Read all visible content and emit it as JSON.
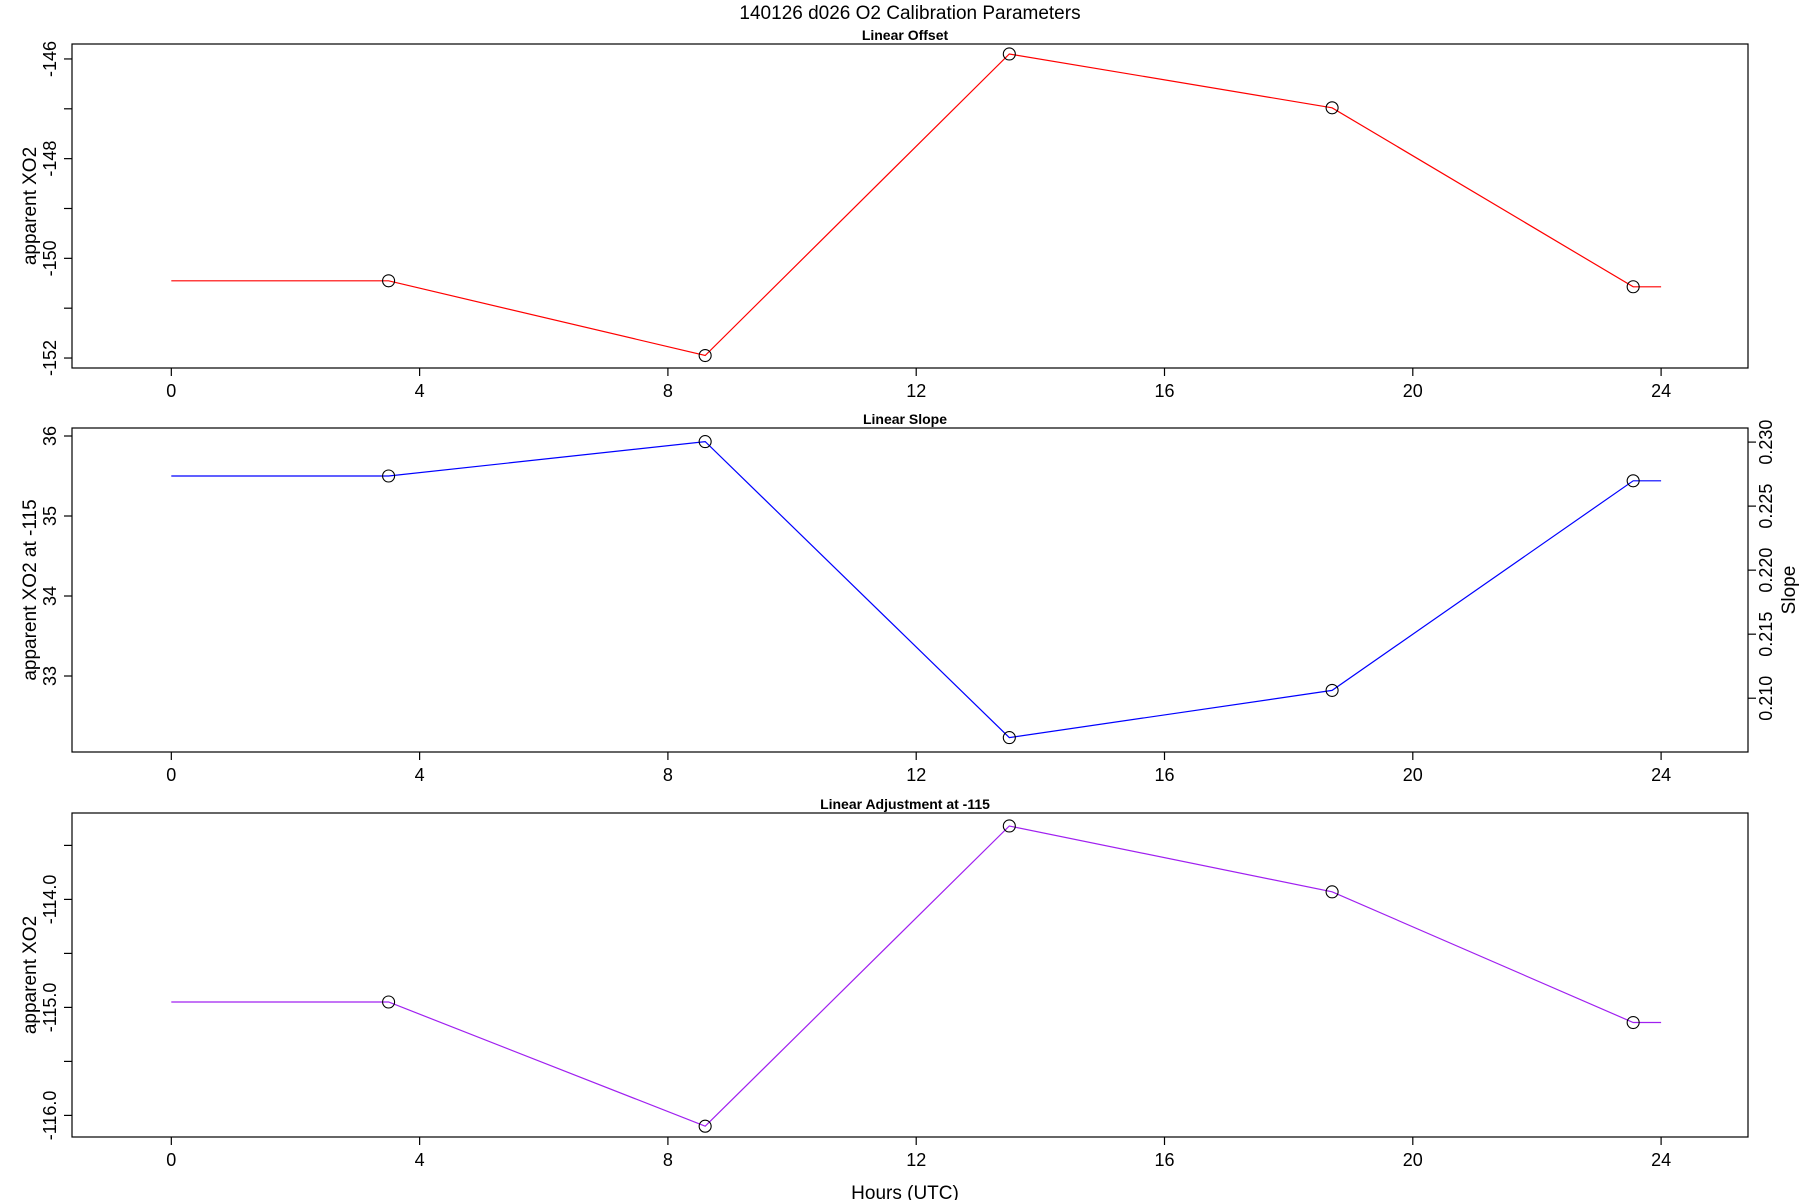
{
  "figure": {
    "title": "140126   d026   O2 Calibration Parameters"
  },
  "chart_data": [
    {
      "type": "line",
      "title": "Linear Offset",
      "xlabel": "",
      "ylabel": "apparent XO2",
      "xlim": [
        -1.6,
        25.4
      ],
      "ylim": [
        -152.2,
        -145.7
      ],
      "x_ticks": [
        "0",
        "4",
        "8",
        "12",
        "16",
        "20",
        "24"
      ],
      "y_ticks": [
        "-146",
        "-148",
        "-150",
        "-152"
      ],
      "y_minor_ticks": [
        -147,
        -149,
        -151
      ],
      "color": "#ff0000",
      "line": {
        "x": [
          0,
          3.5,
          8.6,
          13.5,
          18.7,
          23.55,
          24
        ],
        "y": [
          -150.45,
          -150.45,
          -151.95,
          -145.9,
          -146.98,
          -150.57,
          -150.57
        ]
      },
      "points": {
        "x": [
          3.5,
          8.6,
          13.5,
          18.7,
          23.55
        ],
        "y": [
          -150.45,
          -151.95,
          -145.9,
          -146.98,
          -150.57
        ]
      }
    },
    {
      "type": "line",
      "title": "Linear Slope",
      "xlabel": "",
      "ylabel": "apparent XO2 at -115",
      "ylabel_right": "Slope",
      "xlim": [
        -1.6,
        25.4
      ],
      "ylim": [
        32.05,
        36.1
      ],
      "ylim_right": [
        0.2058,
        0.2311
      ],
      "x_ticks": [
        "0",
        "4",
        "8",
        "12",
        "16",
        "20",
        "24"
      ],
      "y_ticks": [
        "33",
        "34",
        "35",
        "36"
      ],
      "y_right_ticks": [
        "0.210",
        "0.215",
        "0.220",
        "0.225",
        "0.230"
      ],
      "color": "#0000ff",
      "line": {
        "x": [
          0,
          3.5,
          8.6,
          13.5,
          18.7,
          23.55,
          24
        ],
        "y": [
          35.5,
          35.5,
          35.93,
          32.23,
          32.82,
          35.44,
          35.44
        ]
      },
      "points": {
        "x": [
          3.5,
          8.6,
          13.5,
          18.7,
          23.55
        ],
        "y": [
          35.5,
          35.93,
          32.23,
          32.82,
          35.44
        ]
      }
    },
    {
      "type": "line",
      "title": "Linear Adjustment at -115",
      "xlabel": "Hours (UTC)",
      "ylabel": "apparent XO2",
      "xlim": [
        -1.6,
        25.4
      ],
      "ylim": [
        -116.2,
        -113.2
      ],
      "x_ticks": [
        "0",
        "4",
        "8",
        "12",
        "16",
        "20",
        "24"
      ],
      "y_ticks": [
        "-114.0",
        "-115.0",
        "-116.0"
      ],
      "y_minor_ticks": [
        -113.5,
        -114.5,
        -115.5
      ],
      "color": "#a020f0",
      "line": {
        "x": [
          0,
          3.5,
          8.6,
          13.5,
          18.7,
          23.55,
          24
        ],
        "y": [
          -114.95,
          -114.95,
          -116.1,
          -113.32,
          -113.93,
          -115.14,
          -115.14
        ]
      },
      "points": {
        "x": [
          3.5,
          8.6,
          13.5,
          18.7,
          23.55
        ],
        "y": [
          -114.95,
          -116.1,
          -113.32,
          -113.93,
          -115.14
        ]
      }
    }
  ]
}
